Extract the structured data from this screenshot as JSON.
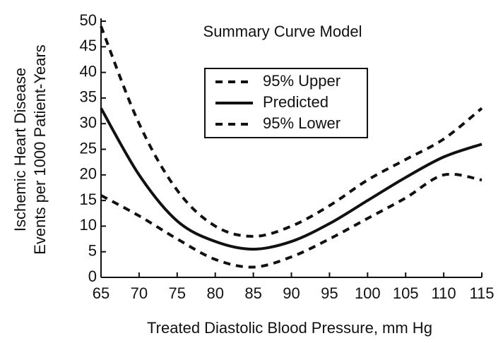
{
  "chart_data": {
    "type": "line",
    "title": "Summary Curve Model",
    "x_label": "Treated Diastolic Blood Pressure, mm Hg",
    "y_label": [
      "Ischemic Heart Disease",
      "Events per 1000 Patient-Years"
    ],
    "x": [
      65,
      70,
      75,
      80,
      85,
      90,
      95,
      100,
      105,
      110,
      115
    ],
    "series": [
      {
        "name": "95% Upper",
        "color": "#111111",
        "dash": "dashed",
        "values": [
          49,
          30,
          17,
          10,
          8,
          10,
          14,
          19,
          23,
          27,
          33
        ]
      },
      {
        "name": "Predicted",
        "color": "#111111",
        "dash": "solid",
        "values": [
          33,
          20,
          11,
          7,
          5.5,
          7,
          10.5,
          15,
          19.5,
          23.5,
          26
        ]
      },
      {
        "name": "95% Lower",
        "color": "#111111",
        "dash": "dashed",
        "values": [
          16,
          12,
          7.5,
          3.5,
          2,
          4,
          7.5,
          11.5,
          15.5,
          20,
          19
        ]
      }
    ],
    "xlim": [
      65,
      115
    ],
    "xticks": [
      65,
      70,
      75,
      80,
      85,
      90,
      95,
      100,
      105,
      110,
      115
    ],
    "ylim": [
      0,
      50
    ],
    "yticks": [
      0,
      5,
      10,
      15,
      20,
      25,
      30,
      35,
      40,
      45,
      50
    ],
    "grid": false
  }
}
